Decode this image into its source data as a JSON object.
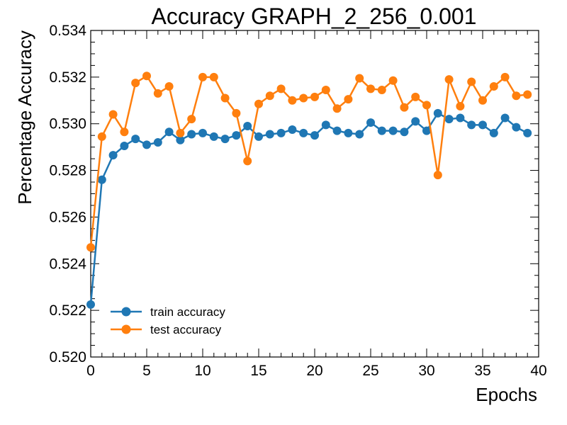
{
  "chart_data": {
    "type": "line",
    "title": "Accuracy GRAPH_2_256_0.001",
    "xlabel": "Epochs",
    "ylabel": "Percentage Accuracy",
    "xlim": [
      0,
      40
    ],
    "ylim": [
      0.52,
      0.534
    ],
    "xticks": [
      0,
      5,
      10,
      15,
      20,
      25,
      30,
      35,
      40
    ],
    "xtick_labels": [
      "0",
      "5",
      "10",
      "15",
      "20",
      "25",
      "30",
      "35",
      "40"
    ],
    "yticks": [
      0.52,
      0.522,
      0.524,
      0.526,
      0.528,
      0.53,
      0.532,
      0.534
    ],
    "ytick_labels": [
      "0.520",
      "0.522",
      "0.524",
      "0.526",
      "0.528",
      "0.530",
      "0.532",
      "0.534"
    ],
    "grid": false,
    "legend_position": "lower-left",
    "x": [
      0,
      1,
      2,
      3,
      4,
      5,
      6,
      7,
      8,
      9,
      10,
      11,
      12,
      13,
      14,
      15,
      16,
      17,
      18,
      19,
      20,
      21,
      22,
      23,
      24,
      25,
      26,
      27,
      28,
      29,
      30,
      31,
      32,
      33,
      34,
      35,
      36,
      37,
      38,
      39
    ],
    "series": [
      {
        "name": "train accuracy",
        "color": "#1f77b4",
        "values": [
          0.52225,
          0.5276,
          0.52865,
          0.52905,
          0.52935,
          0.5291,
          0.5292,
          0.52965,
          0.5293,
          0.52955,
          0.5296,
          0.52945,
          0.52935,
          0.5295,
          0.5299,
          0.52945,
          0.52955,
          0.5296,
          0.52975,
          0.5296,
          0.5295,
          0.52995,
          0.5297,
          0.5296,
          0.52955,
          0.53005,
          0.5297,
          0.5297,
          0.52965,
          0.5301,
          0.5297,
          0.53045,
          0.5302,
          0.53025,
          0.52995,
          0.52995,
          0.5296,
          0.53025,
          0.52985,
          0.5296
        ]
      },
      {
        "name": "test accuracy",
        "color": "#ff7f0e",
        "values": [
          0.5247,
          0.52945,
          0.5304,
          0.52965,
          0.53175,
          0.53205,
          0.5313,
          0.5316,
          0.5296,
          0.5302,
          0.532,
          0.532,
          0.5311,
          0.53045,
          0.5284,
          0.53085,
          0.5312,
          0.5315,
          0.531,
          0.5311,
          0.53115,
          0.53145,
          0.53065,
          0.53105,
          0.53195,
          0.5315,
          0.53145,
          0.53185,
          0.5307,
          0.53115,
          0.5308,
          0.5278,
          0.5319,
          0.53075,
          0.5318,
          0.531,
          0.5316,
          0.532,
          0.5312,
          0.53125
        ]
      }
    ]
  }
}
